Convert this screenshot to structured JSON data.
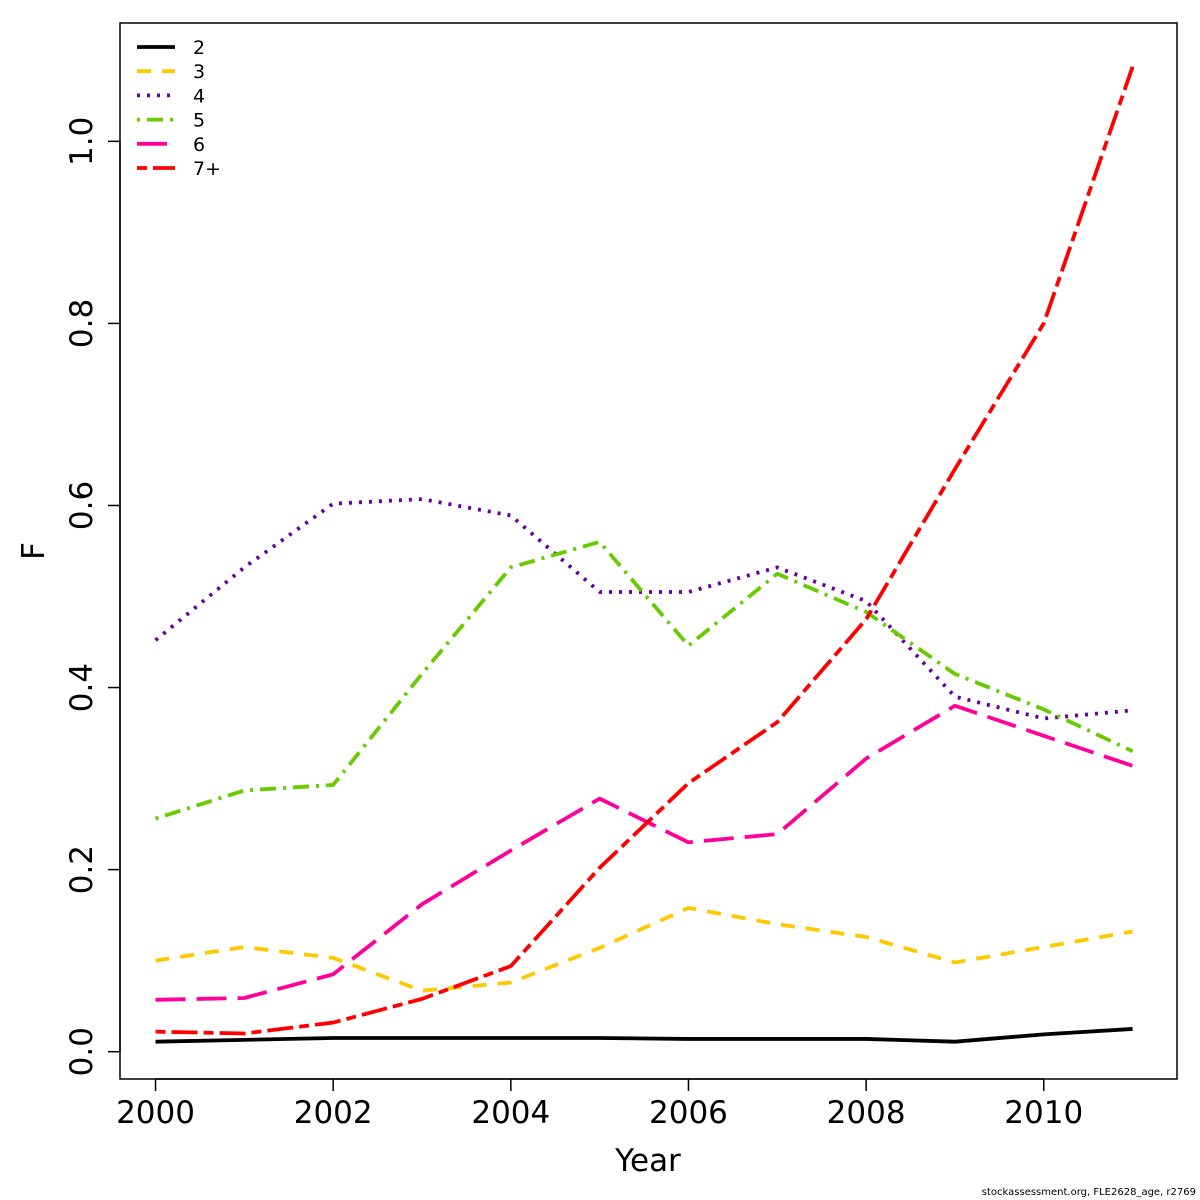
{
  "footer": "stockassessment.org, FLE2628_age, r2769",
  "chart_data": {
    "type": "line",
    "xlabel": "Year",
    "ylabel": "F",
    "xlim": [
      1999.6,
      2011.5
    ],
    "ylim": [
      -0.03,
      1.13
    ],
    "x_ticks": [
      2000,
      2002,
      2004,
      2006,
      2008,
      2010
    ],
    "y_ticks": [
      0.0,
      0.2,
      0.4,
      0.6,
      0.8,
      1.0
    ],
    "y_tick_labels": [
      "0.0",
      "0.2",
      "0.4",
      "0.6",
      "0.8",
      "1.0"
    ],
    "grid": false,
    "legend_position": "top-left",
    "x": [
      2000,
      2001,
      2002,
      2003,
      2004,
      2005,
      2006,
      2007,
      2008,
      2009,
      2010,
      2011
    ],
    "series": [
      {
        "name": "2",
        "color": "#000000",
        "dash": "solid",
        "values": [
          0.011,
          0.013,
          0.015,
          0.015,
          0.015,
          0.015,
          0.014,
          0.014,
          0.014,
          0.011,
          0.019,
          0.025
        ]
      },
      {
        "name": "3",
        "color": "#FFC800",
        "dash": "dashed",
        "values": [
          0.1,
          0.115,
          0.103,
          0.067,
          0.076,
          0.114,
          0.158,
          0.14,
          0.126,
          0.098,
          0.115,
          0.132
        ]
      },
      {
        "name": "4",
        "color": "#660099",
        "dash": "dotted",
        "values": [
          0.452,
          0.532,
          0.602,
          0.607,
          0.589,
          0.505,
          0.505,
          0.532,
          0.495,
          0.39,
          0.366,
          0.375
        ]
      },
      {
        "name": "5",
        "color": "#66CC00",
        "dash": "dotdash",
        "values": [
          0.256,
          0.287,
          0.293,
          0.415,
          0.532,
          0.56,
          0.446,
          0.525,
          0.483,
          0.415,
          0.376,
          0.33
        ]
      },
      {
        "name": "6",
        "color": "#FF0099",
        "dash": "longdash",
        "values": [
          0.057,
          0.059,
          0.085,
          0.162,
          0.221,
          0.278,
          0.23,
          0.239,
          0.322,
          0.38,
          0.347,
          0.314
        ]
      },
      {
        "name": "7+",
        "color": "#FF0000",
        "dash": "twodash",
        "values": [
          0.022,
          0.02,
          0.032,
          0.058,
          0.094,
          0.202,
          0.295,
          0.362,
          0.475,
          0.64,
          0.8,
          1.082
        ]
      }
    ]
  }
}
